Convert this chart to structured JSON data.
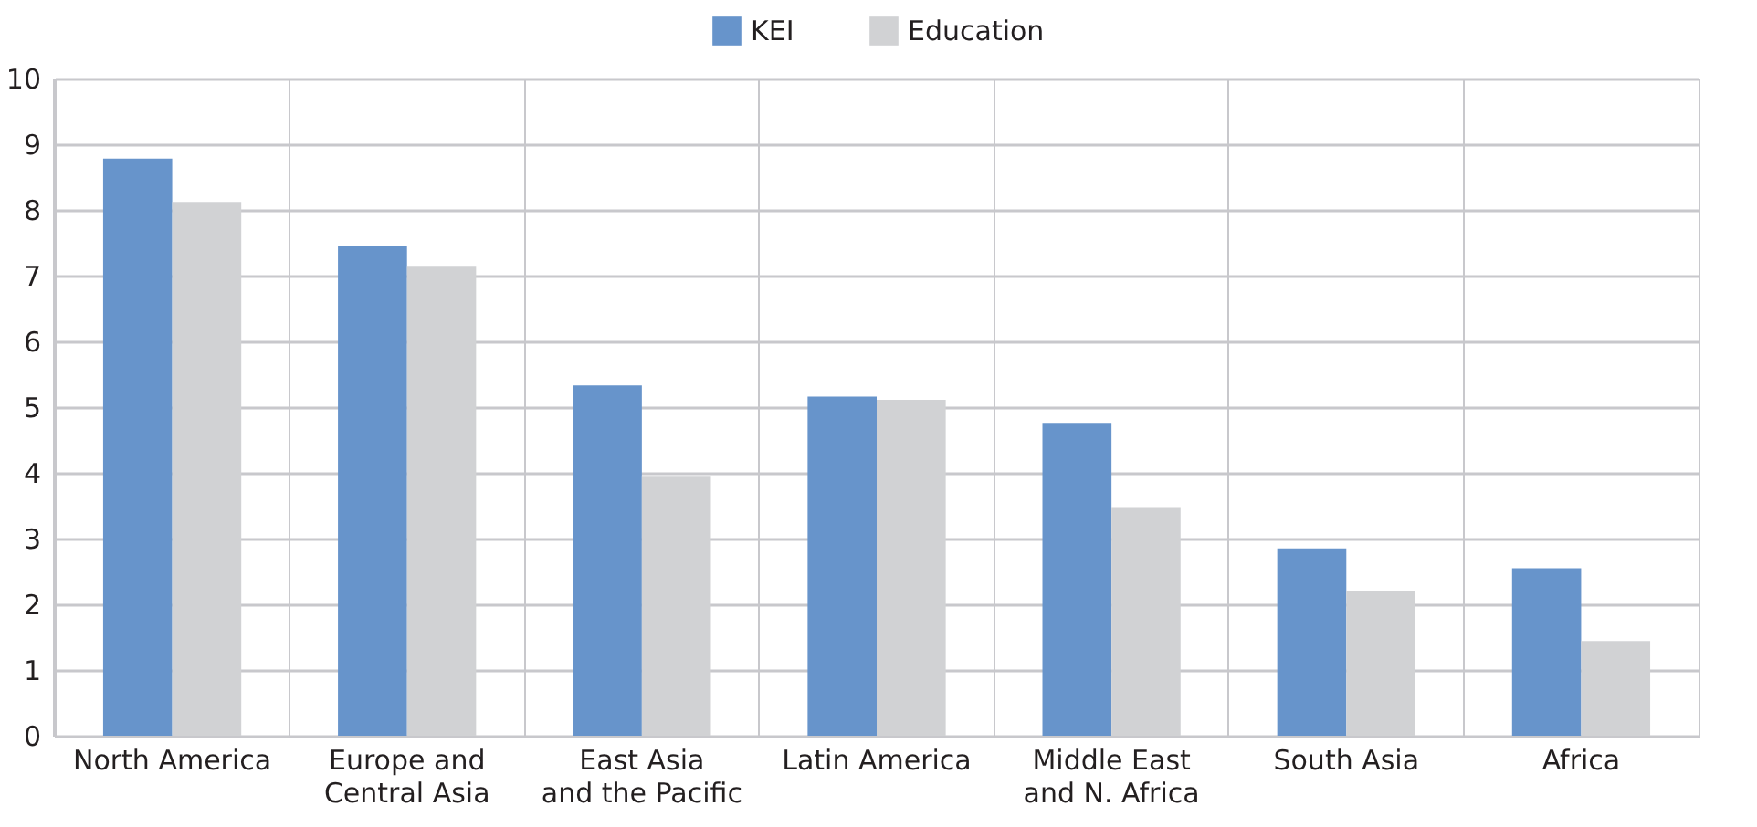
{
  "chart_data": {
    "type": "bar",
    "categories": [
      "North America",
      "Europe and\nCentral Asia",
      "East Asia\nand the Pacific",
      "Latin America",
      "Middle East\nand N. Africa",
      "South Asia",
      "Africa"
    ],
    "series": [
      {
        "name": "KEI",
        "color": "#6794cb",
        "values": [
          8.78,
          7.45,
          5.33,
          5.16,
          4.76,
          2.85,
          2.55
        ]
      },
      {
        "name": "Education",
        "color": "#d1d2d4",
        "values": [
          8.12,
          7.15,
          3.94,
          5.11,
          3.48,
          2.2,
          1.44
        ]
      }
    ],
    "ylim": [
      0,
      10
    ],
    "yticks": [
      0,
      1,
      2,
      3,
      4,
      5,
      6,
      7,
      8,
      9,
      10
    ],
    "grid": true,
    "legend": "top"
  }
}
